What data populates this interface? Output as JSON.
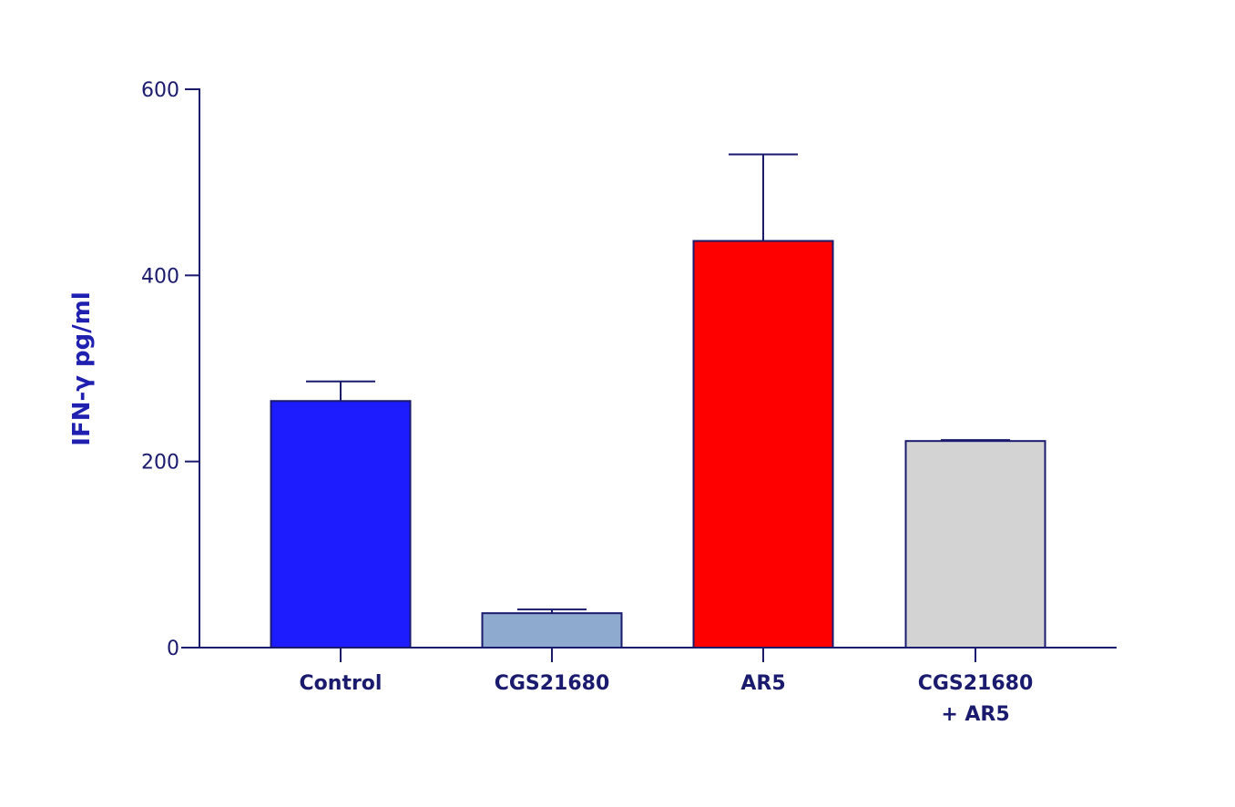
{
  "chart_data": {
    "type": "bar",
    "ylabel": "IFN-γ pg/ml",
    "ylim": [
      0,
      600
    ],
    "yticks": [
      0,
      200,
      400,
      600
    ],
    "grid": false,
    "categories": [
      [
        "Control"
      ],
      [
        "CGS21680"
      ],
      [
        "AR5"
      ],
      [
        "CGS21680",
        "+ AR5"
      ]
    ],
    "values": [
      265,
      37,
      437,
      222
    ],
    "error_upper": [
      21,
      4,
      93,
      1
    ],
    "colors": [
      "#1c1cff",
      "#8eaacf",
      "#ff0000",
      "#d3d3d3"
    ]
  }
}
